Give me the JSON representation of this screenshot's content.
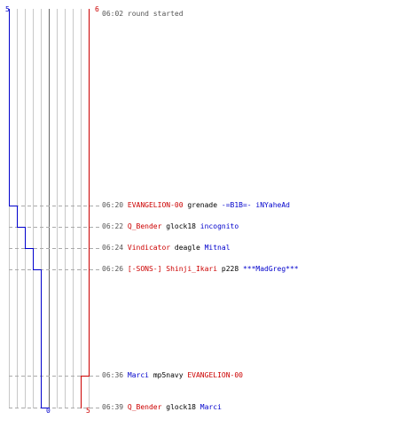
{
  "colors": {
    "team_blue": "#0000cc",
    "team_red": "#cc0000",
    "grid": "#c8c8c8",
    "center": "#666666",
    "dash": "#aaaaaa"
  },
  "axis": {
    "blue_start": "5",
    "red_start": "6",
    "blue_end": "0",
    "red_end": "5"
  },
  "chart_data": {
    "type": "line",
    "series": [
      {
        "team": "blue",
        "alive_after_event": [
          5,
          4,
          3,
          2,
          1,
          1,
          0
        ]
      },
      {
        "team": "red",
        "alive_after_event": [
          6,
          6,
          6,
          6,
          6,
          5,
          5
        ]
      }
    ],
    "x": [
      "06:02",
      "06:20",
      "06:22",
      "06:24",
      "06:26",
      "06:36",
      "06:39"
    ]
  },
  "events": [
    {
      "time": "06:02",
      "parts": [
        {
          "text": "round started",
          "c": "grey"
        }
      ]
    },
    {
      "time": "06:20",
      "parts": [
        {
          "text": "EVANGELION-00",
          "c": "red"
        },
        {
          "text": " grenade ",
          "c": "black"
        },
        {
          "text": "-=B1B=- iNYaheAd",
          "c": "blue"
        }
      ]
    },
    {
      "time": "06:22",
      "parts": [
        {
          "text": "Q_Bender",
          "c": "red"
        },
        {
          "text": " glock18 ",
          "c": "black"
        },
        {
          "text": "incognito",
          "c": "blue"
        }
      ]
    },
    {
      "time": "06:24",
      "parts": [
        {
          "text": "Vindicator",
          "c": "red"
        },
        {
          "text": " deagle ",
          "c": "black"
        },
        {
          "text": "Mitnal",
          "c": "blue"
        }
      ]
    },
    {
      "time": "06:26",
      "parts": [
        {
          "text": "[-SONS-] Shinji_Ikari",
          "c": "red"
        },
        {
          "text": " p228 ",
          "c": "black"
        },
        {
          "text": "***MadGreg***",
          "c": "blue"
        }
      ]
    },
    {
      "time": "06:36",
      "parts": [
        {
          "text": "Marci",
          "c": "blue"
        },
        {
          "text": " mp5navy ",
          "c": "black"
        },
        {
          "text": "EVANGELION-00",
          "c": "red"
        }
      ]
    },
    {
      "time": "06:39",
      "parts": [
        {
          "text": "Q_Bender",
          "c": "red"
        },
        {
          "text": " glock18 ",
          "c": "black"
        },
        {
          "text": "Marci",
          "c": "blue"
        }
      ]
    }
  ]
}
